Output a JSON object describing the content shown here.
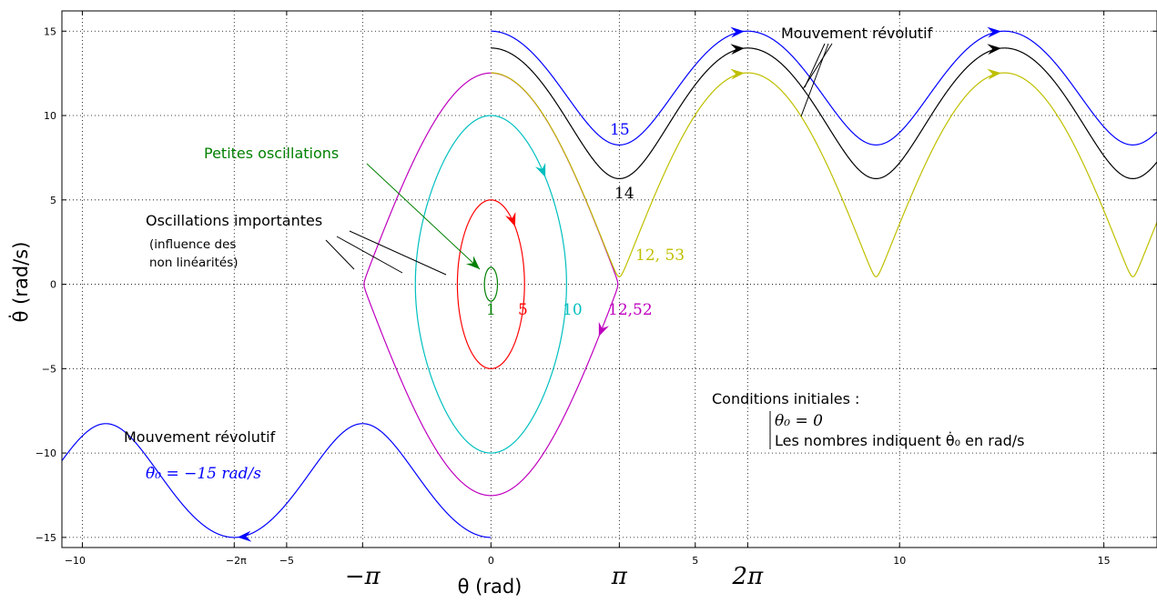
{
  "chart_data": {
    "type": "line",
    "title": "",
    "xlabel": "θ (rad)",
    "ylabel": "θ̇ (rad/s)",
    "xlim": [
      -10.5,
      16.3
    ],
    "ylim": [
      -15.6,
      16.2
    ],
    "grid": true,
    "grid_style": "dotted",
    "x_ticks": [
      "−10",
      "−5",
      "0",
      "5",
      "10",
      "15"
    ],
    "x_pi_ticks": [
      "−2π",
      "−π",
      "π",
      "2π"
    ],
    "y_ticks": [
      "15",
      "10",
      "5",
      "0",
      "−5",
      "−10",
      "−15"
    ],
    "physics": {
      "g_over_l": 39.2,
      "theta0": 0
    },
    "series": [
      {
        "label": "1",
        "initial_velocity": 1,
        "color": "#008000",
        "kind": "oscillation"
      },
      {
        "label": "5",
        "initial_velocity": 5,
        "color": "#ff0000",
        "kind": "oscillation"
      },
      {
        "label": "10",
        "initial_velocity": 10,
        "color": "#00bfbf",
        "kind": "oscillation"
      },
      {
        "label": "12,52",
        "initial_velocity": 12.52,
        "color": "#bf00bf",
        "kind": "oscillation"
      },
      {
        "label": "12, 53",
        "initial_velocity": 12.53,
        "color": "#bfbf00",
        "kind": "revolution"
      },
      {
        "label": "14",
        "initial_velocity": 14,
        "color": "#000000",
        "kind": "revolution"
      },
      {
        "label": "15",
        "initial_velocity": 15,
        "color": "#0000ff",
        "kind": "revolution"
      },
      {
        "label": "θ̇₀ = −15 rad/s",
        "initial_velocity": -15,
        "color": "#0000ff",
        "kind": "revolution"
      }
    ],
    "annotations": {
      "petites": "Petites oscillations",
      "importantes": "Oscillations importantes",
      "importantes_sub1": "(influence des",
      "importantes_sub2": "non linéarités)",
      "revolutif_top": "Mouvement révolutif",
      "revolutif_bottom": "Mouvement révolutif",
      "conditions_title": "Conditions initiales :",
      "conditions_line1": "θ₀ = 0",
      "conditions_line2": "Les nombres indiquent θ̇₀ en rad/s"
    },
    "colors": {
      "petites_text": "#008000",
      "petites_arrow": "#008000"
    }
  }
}
